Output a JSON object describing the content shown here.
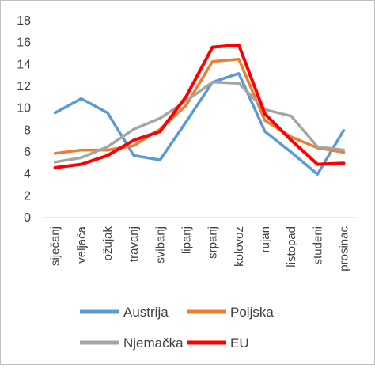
{
  "chart_data": {
    "type": "line",
    "title": "",
    "xlabel": "",
    "ylabel": "",
    "ylim": [
      0,
      18
    ],
    "ytick_step": 2,
    "grid": false,
    "legend_position": "bottom",
    "categories": [
      "siječanj",
      "veljača",
      "ožujak",
      "travanj",
      "svibanj",
      "lipanj",
      "srpanj",
      "kolovoz",
      "rujan",
      "listopad",
      "studeni",
      "prosinac"
    ],
    "series": [
      {
        "name": "Austrija",
        "color": "#5b9bd5",
        "values": [
          9.5,
          10.8,
          9.5,
          5.6,
          5.2,
          8.7,
          12.3,
          13.1,
          7.8,
          5.9,
          3.9,
          7.9
        ]
      },
      {
        "name": "Poljska",
        "color": "#ed7d31",
        "values": [
          5.8,
          6.1,
          6.1,
          6.5,
          8.0,
          10.2,
          14.2,
          14.4,
          8.8,
          7.3,
          6.3,
          5.9
        ]
      },
      {
        "name": "Njemačka",
        "color": "#a5a5a5",
        "values": [
          5.0,
          5.4,
          6.4,
          8.0,
          9.0,
          10.6,
          12.3,
          12.2,
          9.8,
          9.2,
          6.4,
          6.1
        ]
      },
      {
        "name": "EU",
        "color": "#ff0000",
        "values": [
          4.5,
          4.8,
          5.6,
          7.0,
          7.8,
          11.0,
          15.5,
          15.7,
          9.4,
          7.0,
          4.8,
          4.9
        ]
      }
    ]
  }
}
